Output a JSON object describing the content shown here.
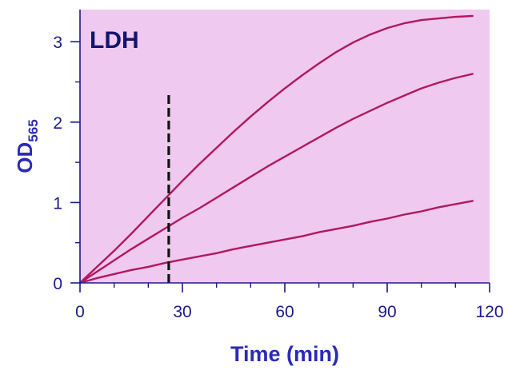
{
  "chart_data": {
    "type": "line",
    "title": "LDH",
    "xlabel": "Time (min)",
    "ylabel_main": "OD",
    "ylabel_sub": "565",
    "xlim": [
      0,
      120
    ],
    "ylim": [
      0,
      3.4
    ],
    "xticks": [
      0,
      30,
      60,
      90,
      120
    ],
    "xtick_labels": [
      "0",
      "30",
      "60",
      "90",
      "120"
    ],
    "yticks": [
      0,
      1,
      2,
      3
    ],
    "ytick_labels": [
      "0",
      "1",
      "2",
      "3"
    ],
    "x_minor_step": 10,
    "y_minor_step": 0.5,
    "grid": false,
    "marker_line": {
      "x": 26,
      "y_range": [
        0,
        2.35
      ],
      "style": "dashed"
    },
    "series": [
      {
        "x": [
          0,
          5,
          10,
          15,
          20,
          25,
          30,
          35,
          40,
          45,
          50,
          55,
          60,
          65,
          70,
          75,
          80,
          85,
          90,
          95,
          100,
          105,
          110,
          115
        ],
        "values": [
          0.0,
          0.2,
          0.4,
          0.61,
          0.83,
          1.05,
          1.27,
          1.48,
          1.68,
          1.88,
          2.07,
          2.25,
          2.42,
          2.58,
          2.73,
          2.87,
          2.99,
          3.09,
          3.17,
          3.23,
          3.27,
          3.29,
          3.31,
          3.32
        ]
      },
      {
        "x": [
          0,
          5,
          10,
          15,
          20,
          25,
          30,
          35,
          40,
          45,
          50,
          55,
          60,
          65,
          70,
          75,
          80,
          85,
          90,
          95,
          100,
          105,
          110,
          115
        ],
        "values": [
          0.0,
          0.14,
          0.28,
          0.42,
          0.55,
          0.68,
          0.81,
          0.93,
          1.06,
          1.19,
          1.32,
          1.45,
          1.57,
          1.69,
          1.81,
          1.93,
          2.04,
          2.14,
          2.24,
          2.33,
          2.42,
          2.49,
          2.55,
          2.6
        ]
      },
      {
        "x": [
          0,
          5,
          10,
          15,
          20,
          25,
          30,
          35,
          40,
          45,
          50,
          55,
          60,
          65,
          70,
          75,
          80,
          85,
          90,
          95,
          100,
          105,
          110,
          115
        ],
        "values": [
          0.0,
          0.06,
          0.11,
          0.16,
          0.2,
          0.25,
          0.29,
          0.33,
          0.37,
          0.42,
          0.46,
          0.5,
          0.54,
          0.58,
          0.63,
          0.67,
          0.71,
          0.76,
          0.8,
          0.85,
          0.89,
          0.94,
          0.98,
          1.02
        ]
      }
    ],
    "colors": {
      "plot_bg": "#efc9f0",
      "axis": "#1a1a8c",
      "series": "#b0185f",
      "marker_line": "#111111"
    }
  }
}
